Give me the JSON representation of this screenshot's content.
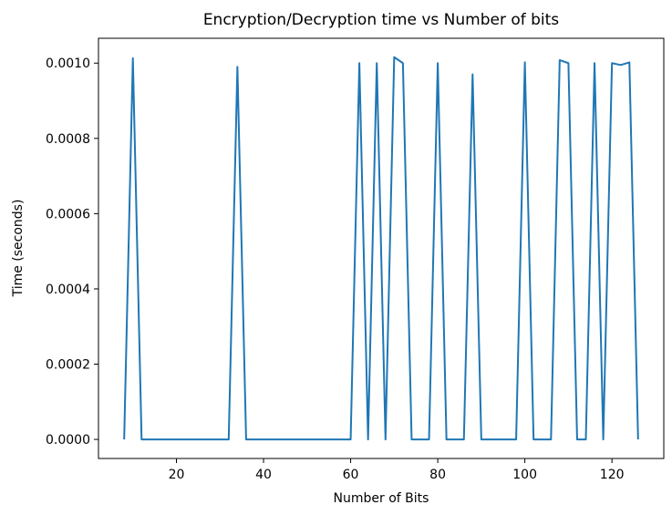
{
  "chart_data": {
    "type": "line",
    "title": "Encryption/Decryption time vs Number of bits",
    "xlabel": "Number of Bits",
    "ylabel": "Time (seconds)",
    "xlim": [
      2.1,
      131.9
    ],
    "ylim": [
      -5.07e-05,
      0.001066
    ],
    "grid": false,
    "legend": "none",
    "line_color": "#1f77b4",
    "xticks": [
      20,
      40,
      60,
      80,
      100,
      120
    ],
    "xtick_labels": [
      "20",
      "40",
      "60",
      "80",
      "100",
      "120"
    ],
    "yticks": [
      0.0,
      0.0002,
      0.0004,
      0.0006,
      0.0008,
      0.001
    ],
    "ytick_labels": [
      "0.0000",
      "0.0002",
      "0.0004",
      "0.0006",
      "0.0008",
      "0.0010"
    ],
    "series": [
      {
        "x": [
          8,
          10,
          12,
          14,
          16,
          18,
          20,
          22,
          24,
          26,
          28,
          30,
          32,
          34,
          36,
          38,
          40,
          42,
          44,
          46,
          48,
          50,
          52,
          54,
          56,
          58,
          60,
          62,
          64,
          66,
          68,
          70,
          72,
          74,
          76,
          78,
          80,
          82,
          84,
          86,
          88,
          90,
          92,
          94,
          96,
          98,
          100,
          102,
          104,
          106,
          108,
          110,
          112,
          114,
          116,
          118,
          120,
          122,
          124,
          126
        ],
        "y": [
          0.0,
          0.001013,
          0.0,
          0.0,
          0.0,
          0.0,
          0.0,
          0.0,
          0.0,
          0.0,
          0.0,
          0.0,
          0.0,
          0.00099,
          0.0,
          0.0,
          0.0,
          0.0,
          0.0,
          0.0,
          0.0,
          0.0,
          0.0,
          0.0,
          0.0,
          0.0,
          0.0,
          0.001,
          0.0,
          0.001,
          0.0,
          0.001016,
          0.001,
          0.0,
          0.0,
          0.0,
          0.001,
          0.0,
          0.0,
          0.0,
          0.00097,
          0.0,
          0.0,
          0.0,
          0.0,
          0.0,
          0.001002,
          0.0,
          0.0,
          0.0,
          0.001008,
          0.001,
          0.0,
          0.0,
          0.001,
          0.0,
          0.001,
          0.000995,
          0.001002,
          0.0
        ]
      }
    ]
  }
}
